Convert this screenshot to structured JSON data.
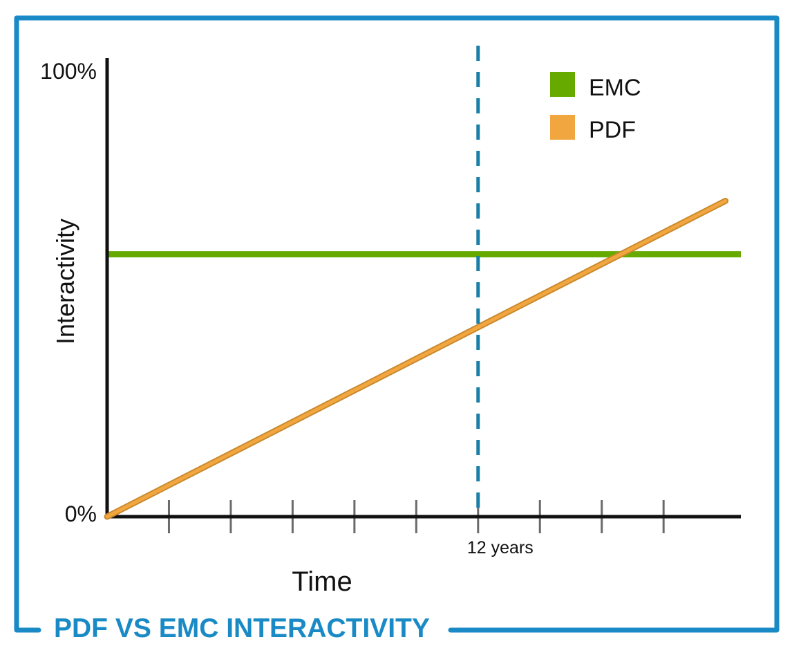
{
  "chart_data": {
    "type": "line",
    "title": "PDF VS EMC INTERACTIVITY",
    "xlabel": "Time",
    "ylabel": "Interactivity",
    "y_tick_labels": [
      "0%",
      "100%"
    ],
    "ylim": [
      0,
      100
    ],
    "xlim": [
      0,
      20.5
    ],
    "x_ticks": [
      2,
      4,
      6,
      8,
      10,
      12,
      14,
      16,
      18
    ],
    "x_tick_labels": [
      {
        "x": 12,
        "label": "12 years"
      }
    ],
    "reference_line": {
      "x": 12,
      "style": "dashed",
      "color": "#1a7fa8"
    },
    "legend": {
      "placement": "top-right"
    },
    "grid": false,
    "series": [
      {
        "name": "EMC",
        "color": "#66aa00",
        "points": [
          [
            0,
            59
          ],
          [
            20.5,
            59
          ]
        ]
      },
      {
        "name": "PDF",
        "color": "#f2a640",
        "points": [
          [
            0,
            0
          ],
          [
            20,
            71
          ]
        ]
      }
    ]
  },
  "colors": {
    "frame": "#1a8ac6",
    "axis": "#111111",
    "tick": "#6a6a6a"
  }
}
